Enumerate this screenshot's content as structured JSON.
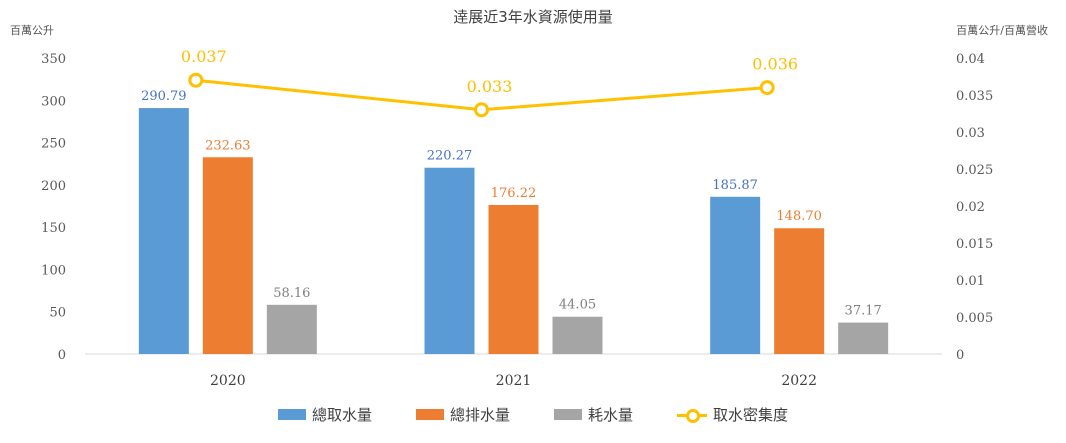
{
  "chart_data": {
    "type": "bar",
    "title": "逹展近3年水資源使用量",
    "left_axis_unit": "百萬公升",
    "right_axis_unit": "百萬公升/百萬營收",
    "categories": [
      "2020",
      "2021",
      "2022"
    ],
    "ylim": [
      0,
      350
    ],
    "yticks": [
      0,
      50,
      100,
      150,
      200,
      250,
      300,
      350
    ],
    "y2lim": [
      0,
      0.04
    ],
    "y2ticks": [
      "0",
      "0.005",
      "0.01",
      "0.015",
      "0.02",
      "0.025",
      "0.03",
      "0.035",
      "0.04"
    ],
    "series": [
      {
        "name": "總取水量",
        "type": "bar",
        "color": "#5b9bd5",
        "values": [
          290.79,
          220.27,
          185.87
        ],
        "labels": [
          "290.79",
          "220.27",
          "185.87"
        ]
      },
      {
        "name": "總排水量",
        "type": "bar",
        "color": "#ed7d31",
        "values": [
          232.63,
          176.22,
          148.7
        ],
        "labels": [
          "232.63",
          "176.22",
          "148.70"
        ]
      },
      {
        "name": "耗水量",
        "type": "bar",
        "color": "#a5a5a5",
        "values": [
          58.16,
          44.05,
          37.17
        ],
        "labels": [
          "58.16",
          "44.05",
          "37.17"
        ]
      },
      {
        "name": "取水密集度",
        "type": "line",
        "axis": "right",
        "color": "#ffc000",
        "values": [
          0.037,
          0.033,
          0.036
        ],
        "labels": [
          "0.037",
          "0.033",
          "0.036"
        ]
      }
    ],
    "grid": false,
    "legend_position": "bottom"
  }
}
